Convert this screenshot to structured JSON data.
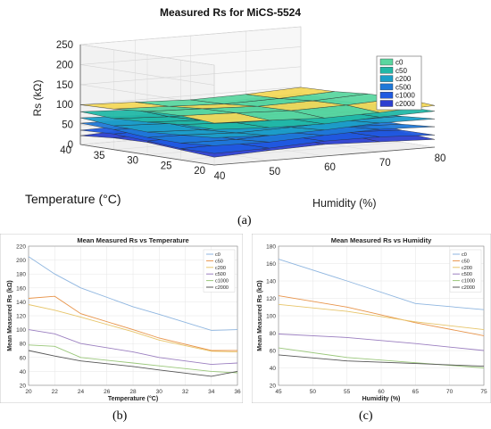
{
  "sublabels": {
    "a": "(a)",
    "b": "(b)",
    "c": "(c)"
  },
  "chart_data": [
    {
      "type": "surface3d",
      "title": "Measured Rs for MiCS-5524",
      "zlabel": "Rs (kΩ)",
      "xlabel": "Temperature (°C)",
      "ylabel": "Humidity (%)",
      "zticks": [
        0,
        50,
        100,
        150,
        200,
        250
      ],
      "xticks": [
        20,
        25,
        30,
        35,
        40
      ],
      "yticks": [
        40,
        50,
        60,
        70,
        80
      ],
      "legend": {
        "placement": "right",
        "entries": [
          "c0",
          "c50",
          "c200",
          "c500",
          "c1000",
          "c2000"
        ]
      },
      "colors": [
        "#5bd6a0",
        "#22b8a6",
        "#1c9ec8",
        "#1f78d8",
        "#1f5ae0",
        "#2c3fd0"
      ],
      "levels": [
        100,
        80,
        62,
        50,
        38,
        30
      ]
    },
    {
      "type": "line",
      "title": "Mean Measured Rs vs Temperature",
      "xlabel": "Temperature (°C)",
      "ylabel": "Mean Measured Rs (kΩ)",
      "xlim": [
        20,
        36
      ],
      "ylim": [
        20,
        220
      ],
      "xticks": [
        20,
        22,
        24,
        26,
        28,
        30,
        32,
        34,
        36
      ],
      "yticks": [
        20,
        40,
        60,
        80,
        100,
        120,
        140,
        160,
        180,
        200,
        220
      ],
      "x": [
        20,
        22,
        24,
        28,
        30,
        34,
        36
      ],
      "legend": "top-right",
      "series": [
        {
          "name": "c0",
          "color": "#8fb6e0",
          "values": [
            205,
            180,
            160,
            133,
            122,
            99,
            100
          ]
        },
        {
          "name": "c50",
          "color": "#e8944a",
          "values": [
            145,
            148,
            123,
            100,
            88,
            70,
            70
          ]
        },
        {
          "name": "c200",
          "color": "#e7c56a",
          "values": [
            136,
            128,
            118,
            97,
            85,
            69,
            68
          ]
        },
        {
          "name": "c500",
          "color": "#9b7fc0",
          "values": [
            100,
            94,
            80,
            68,
            60,
            50,
            52
          ]
        },
        {
          "name": "c1000",
          "color": "#9ac77a",
          "values": [
            78,
            76,
            60,
            52,
            48,
            40,
            38
          ]
        },
        {
          "name": "c2000",
          "color": "#555555",
          "values": [
            70,
            62,
            55,
            47,
            42,
            33,
            40
          ]
        }
      ]
    },
    {
      "type": "line",
      "title": "Mean Measured Rs vs Humidity",
      "xlabel": "Humidity (%)",
      "ylabel": "Mean Measured Rs (kΩ)",
      "xlim": [
        45,
        75
      ],
      "ylim": [
        20,
        180
      ],
      "xticks": [
        45,
        50,
        55,
        60,
        65,
        70,
        75
      ],
      "yticks": [
        20,
        40,
        60,
        80,
        100,
        120,
        140,
        160,
        180
      ],
      "x": [
        45,
        55,
        65,
        75
      ],
      "legend": "top-right",
      "series": [
        {
          "name": "c0",
          "color": "#8fb6e0",
          "values": [
            165,
            140,
            114,
            107
          ]
        },
        {
          "name": "c50",
          "color": "#e8944a",
          "values": [
            123,
            110,
            92,
            77
          ]
        },
        {
          "name": "c200",
          "color": "#e7c56a",
          "values": [
            113,
            105,
            93,
            84
          ]
        },
        {
          "name": "c500",
          "color": "#9b7fc0",
          "values": [
            79,
            75,
            68,
            60
          ]
        },
        {
          "name": "c1000",
          "color": "#9ac77a",
          "values": [
            63,
            52,
            46,
            40
          ]
        },
        {
          "name": "c2000",
          "color": "#555555",
          "values": [
            55,
            48,
            45,
            42
          ]
        }
      ]
    }
  ]
}
